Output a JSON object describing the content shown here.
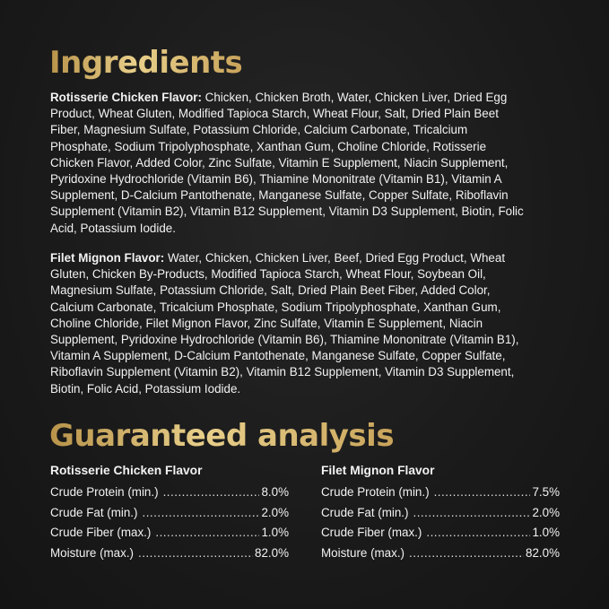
{
  "ingredients": {
    "title": "Ingredients",
    "rotisserie": {
      "label": "Rotisserie Chicken Flavor:",
      "lines": [
        " Chicken, Chicken Broth, Water, Chicken Liver, Dried Egg",
        "Product, Wheat Gluten, Modified Tapioca Starch, Wheat Flour, Salt, Dried Plain Beet",
        "Fiber, Magnesium Sulfate, Potassium Chloride, Calcium Carbonate, Tricalcium",
        "Phosphate, Sodium Tripolyphosphate, Xanthan Gum, Choline Chloride, Rotisserie",
        "Chicken Flavor, Added Color, Zinc Sulfate, Vitamin E Supplement, Niacin Supplement,",
        "Pyridoxine Hydrochloride (Vitamin B6), Thiamine Mononitrate (Vitamin B1), Vitamin A",
        "Supplement,  D-Calcium Pantothenate, Manganese Sulfate, Copper Sulfate, Riboflavin",
        "Supplement (Vitamin B2), Vitamin B12 Supplement, Vitamin D3 Supplement, Biotin, Folic",
        "Acid, Potassium Iodide."
      ]
    },
    "filet": {
      "label": "Filet Mignon Flavor:",
      "lines": [
        " Water, Chicken, Chicken Liver, Beef, Dried Egg Product, Wheat",
        "Gluten, Chicken By-Products, Modified Tapioca Starch, Wheat Flour, Soybean Oil,",
        "Magnesium Sulfate, Potassium Chloride, Salt, Dried Plain Beet Fiber, Added Color,",
        "Calcium Carbonate, Tricalcium Phosphate, Sodium Tripolyphosphate, Xanthan Gum,",
        "Choline Chloride, Filet Mignon Flavor, Zinc Sulfate, Vitamin E Supplement, Niacin",
        "Supplement, Pyridoxine Hydrochloride (Vitamin B6), Thiamine Mononitrate (Vitamin B1),",
        "Vitamin A Supplement,  D-Calcium Pantothenate, Manganese Sulfate, Copper Sulfate,",
        "Riboflavin Supplement (Vitamin B2), Vitamin B12 Supplement, Vitamin D3 Supplement,",
        "Biotin, Folic Acid, Potassium Iodide."
      ]
    }
  },
  "analysis": {
    "title": "Guaranteed analysis",
    "columns": [
      {
        "heading": "Rotisserie Chicken Flavor",
        "rows": [
          {
            "name": "Crude Protein (min.)",
            "value": "8.0%"
          },
          {
            "name": "Crude Fat (min.)",
            "value": "2.0%"
          },
          {
            "name": "Crude Fiber (max.)",
            "value": "1.0%"
          },
          {
            "name": "Moisture (max.)",
            "value": "82.0%"
          }
        ]
      },
      {
        "heading": "Filet Mignon Flavor",
        "rows": [
          {
            "name": "Crude Protein (min.)",
            "value": "7.5%"
          },
          {
            "name": "Crude Fat (min.)",
            "value": "2.0%"
          },
          {
            "name": "Crude Fiber (max.)",
            "value": "1.0%"
          },
          {
            "name": "Moisture (max.)",
            "value": "82.0%"
          }
        ]
      }
    ]
  },
  "colors": {
    "background": "#1b1b1b",
    "title_gold": "#d9bb73",
    "text": "#f2f2f2"
  }
}
